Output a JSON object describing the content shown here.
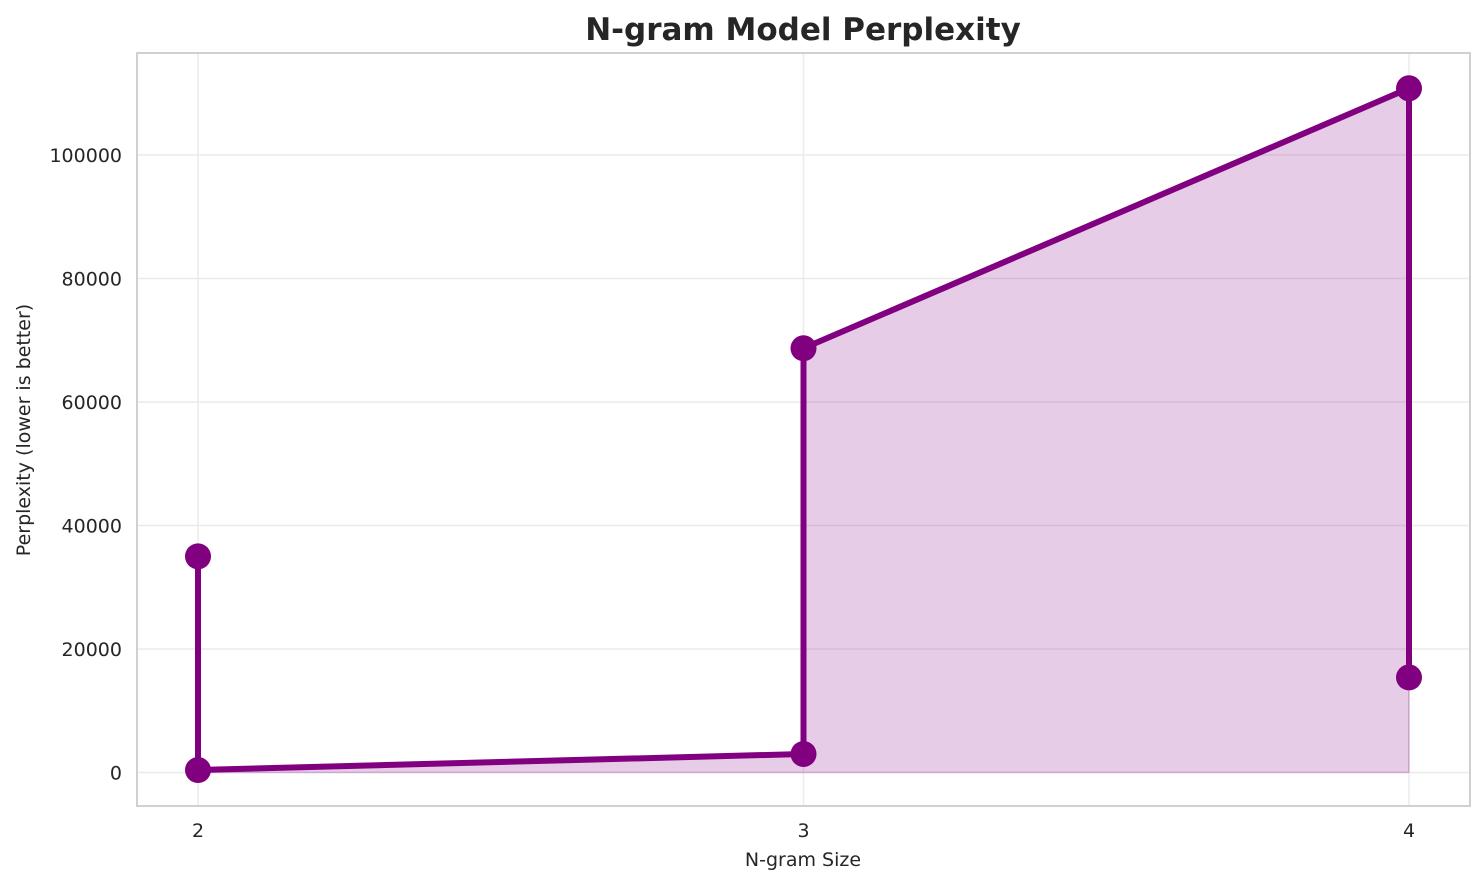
{
  "chart_data": {
    "type": "line",
    "title": "N-gram Model Perplexity",
    "xlabel": "N-gram Size",
    "ylabel": "Perplexity (lower is better)",
    "x_ticks": [
      2,
      3,
      4
    ],
    "y_ticks": [
      0,
      20000,
      40000,
      60000,
      80000,
      100000
    ],
    "xlim": [
      1.9,
      4.1
    ],
    "ylim": [
      -5500,
      116500
    ],
    "grid": true,
    "legend": null,
    "series": [
      {
        "name": "Perplexity",
        "color": "#800080",
        "fill_color": "#800080",
        "fill_alpha": 0.2,
        "marker": "circle",
        "points": [
          {
            "x": 2,
            "y": 35000
          },
          {
            "x": 2,
            "y": 400
          },
          {
            "x": 3,
            "y": 3000
          },
          {
            "x": 3,
            "y": 68700
          },
          {
            "x": 4,
            "y": 110800
          },
          {
            "x": 4,
            "y": 15400
          }
        ]
      }
    ]
  }
}
